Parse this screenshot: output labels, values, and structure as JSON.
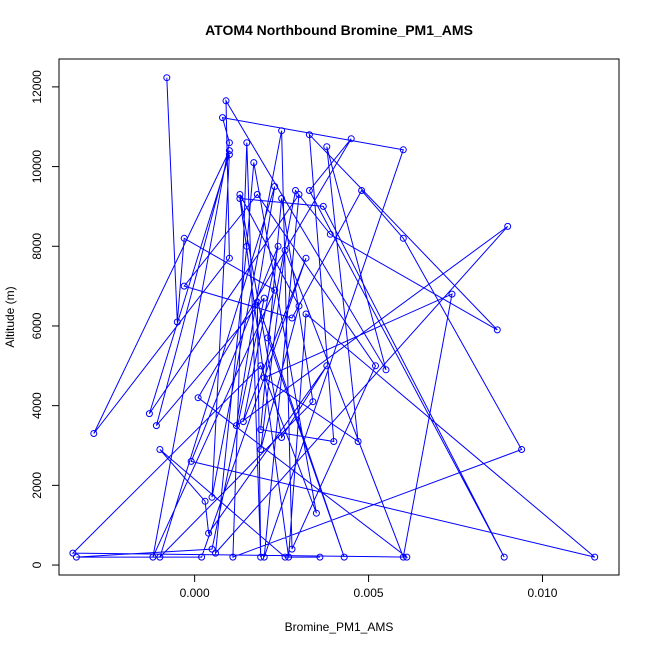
{
  "chart_data": {
    "type": "line",
    "title": "ATOM4 Northbound Bromine_PM1_AMS",
    "xlabel": "Bromine_PM1_AMS",
    "ylabel": "Altitude (m)",
    "xlim": [
      -0.0039,
      0.0122
    ],
    "ylim": [
      -250,
      12700
    ],
    "xticks": [
      0.0,
      0.005,
      0.01
    ],
    "xtick_labels": [
      "0.000",
      "0.005",
      "0.010"
    ],
    "yticks": [
      0,
      2000,
      4000,
      6000,
      8000,
      10000,
      12000
    ],
    "ytick_labels": [
      "0",
      "2000",
      "4000",
      "6000",
      "8000",
      "10000",
      "12000"
    ],
    "grid": false,
    "legend": "none",
    "marker": "open-circle",
    "colors": {
      "series": "#0000ff",
      "axis": "#000000"
    },
    "series": [
      {
        "points": [
          [
            -0.0008,
            12230
          ],
          [
            -0.0005,
            6100
          ],
          [
            -0.0003,
            8200
          ],
          [
            0.0023,
            6900
          ],
          [
            -0.0012,
            200
          ],
          [
            0.001,
            10600
          ],
          [
            0.0008,
            11230
          ],
          [
            0.006,
            10420
          ],
          [
            0.002,
            200
          ],
          [
            0.003,
            9300
          ],
          [
            -0.0013,
            3800
          ],
          [
            0.001,
            10300
          ],
          [
            0.0005,
            1700
          ],
          [
            0.0025,
            10900
          ],
          [
            0.0028,
            400
          ],
          [
            0.0052,
            5000
          ],
          [
            0.0018,
            9300
          ],
          [
            -0.0003,
            7000
          ],
          [
            0.0028,
            6200
          ],
          [
            0.0048,
            9400
          ],
          [
            0.006,
            8200
          ],
          [
            0.0094,
            2900
          ],
          [
            0.0011,
            200
          ],
          [
            0.0015,
            10600
          ],
          [
            0.0019,
            200
          ],
          [
            0.0018,
            6600
          ],
          [
            0.0043,
            200
          ],
          [
            0.0021,
            5700
          ],
          [
            0.0029,
            9400
          ],
          [
            0.0039,
            8300
          ],
          [
            0.0087,
            5900
          ],
          [
            0.0033,
            10800
          ],
          [
            0.004,
            3100
          ],
          [
            0.0019,
            3400
          ],
          [
            0.0025,
            9200
          ],
          [
            0.0034,
            4100
          ],
          [
            -0.001,
            200
          ],
          [
            0.0023,
            9500
          ],
          [
            0.0012,
            3500
          ],
          [
            0.009,
            8500
          ],
          [
            0.0006,
            300
          ],
          [
            0.0015,
            8000
          ],
          [
            0.0017,
            10100
          ],
          [
            0.0035,
            1300
          ],
          [
            0.0019,
            5000
          ],
          [
            -0.0035,
            300
          ],
          [
            0.0061,
            200
          ],
          [
            0.0001,
            4200
          ],
          [
            0.0045,
            10700
          ],
          [
            0.0033,
            9400
          ],
          [
            0.0089,
            200
          ],
          [
            0.0037,
            9000
          ],
          [
            0.0013,
            9200
          ],
          [
            0.0027,
            200
          ],
          [
            0.0032,
            6300
          ],
          [
            0.0115,
            200
          ],
          [
            -0.0001,
            2600
          ],
          [
            0.0024,
            8000
          ],
          [
            0.0014,
            3600
          ],
          [
            0.0032,
            7700
          ],
          [
            0.0002,
            200
          ],
          [
            -0.0034,
            200
          ],
          [
            0.0005,
            400
          ],
          [
            0.002,
            6700
          ],
          [
            -0.0011,
            3500
          ],
          [
            0.001,
            10400
          ],
          [
            -0.0029,
            3300
          ],
          [
            0.001,
            7700
          ],
          [
            0.0009,
            11650
          ],
          [
            0.0055,
            4900
          ],
          [
            0.0038,
            10500
          ],
          [
            0.0047,
            3100
          ],
          [
            0.002,
            4700
          ],
          [
            0.0074,
            6800
          ],
          [
            0.006,
            200
          ],
          [
            0.0026,
            7900
          ],
          [
            0.0019,
            2900
          ],
          [
            0.003,
            6500
          ],
          [
            0.0013,
            9300
          ],
          [
            0.0025,
            3200
          ],
          [
            0.0038,
            5000
          ],
          [
            0.0004,
            800
          ],
          [
            0.0003,
            1600
          ],
          [
            -0.001,
            2900
          ],
          [
            0.0026,
            200
          ],
          [
            0.0036,
            200
          ]
        ]
      }
    ]
  }
}
